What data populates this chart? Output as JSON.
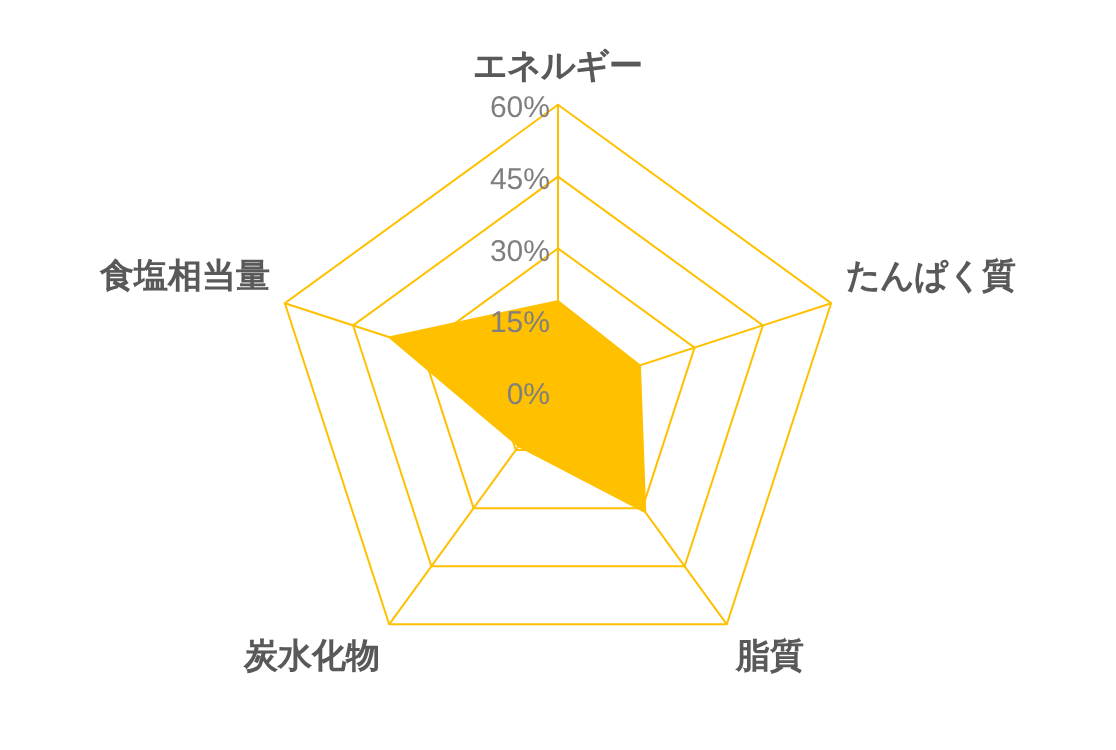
{
  "chart_data": {
    "type": "radar",
    "categories": [
      "エネルギー",
      "たんぱく質",
      "脂質",
      "炭水化物",
      "食塩相当量"
    ],
    "series": [
      {
        "color": "#ffc000",
        "values": [
          19,
          18,
          31,
          14,
          37
        ]
      }
    ],
    "ylim": [
      0,
      60
    ],
    "yticks": [
      {
        "value": 0,
        "label": "0%"
      },
      {
        "value": 15,
        "label": "15%"
      },
      {
        "value": 30,
        "label": "30%"
      },
      {
        "value": 45,
        "label": "45%"
      },
      {
        "value": 60,
        "label": "60%"
      }
    ],
    "grid": true,
    "legend": false
  }
}
